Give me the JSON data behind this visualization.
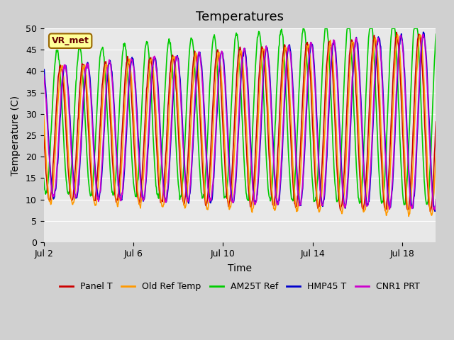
{
  "title": "Temperatures",
  "xlabel": "Time",
  "ylabel": "Temperature (C)",
  "ylim": [
    0,
    50
  ],
  "xlim_days": [
    0,
    17.5
  ],
  "x_ticks": [
    0,
    4,
    8,
    12,
    16
  ],
  "x_tick_labels": [
    "Jul 2",
    "Jul 6",
    "Jul 10",
    "Jul 14",
    "Jul 18"
  ],
  "y_ticks": [
    0,
    5,
    10,
    15,
    20,
    25,
    30,
    35,
    40,
    45,
    50
  ],
  "annotation_text": "VR_met",
  "line_colors": {
    "Panel T": "#cc0000",
    "Old Ref Temp": "#ff9900",
    "AM25T Ref": "#00cc00",
    "HMP45 T": "#0000cc",
    "CNR1 PRT": "#cc00cc"
  },
  "legend_labels": [
    "Panel T",
    "Old Ref Temp",
    "AM25T Ref",
    "HMP45 T",
    "CNR1 PRT"
  ],
  "title_fontsize": 13,
  "axis_label_fontsize": 10,
  "tick_fontsize": 9,
  "legend_fontsize": 9,
  "num_days": 17.5,
  "points_per_day": 48,
  "base_min": 10,
  "base_max": 41,
  "amplitude_increase": 0.35,
  "phase_offsets": [
    0.0,
    0.05,
    -0.15,
    0.2,
    0.18
  ],
  "min_offsets": [
    0.0,
    -1.0,
    1.5,
    0.5,
    0.5
  ],
  "max_offsets": [
    0.0,
    -0.5,
    3.5,
    0.0,
    0.0
  ]
}
